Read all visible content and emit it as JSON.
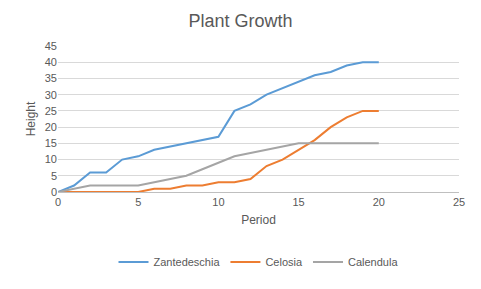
{
  "chart_data": {
    "type": "line",
    "title": "Plant Growth",
    "x_label": "Period",
    "y_label": "Height",
    "x": [
      0,
      1,
      2,
      3,
      4,
      5,
      6,
      7,
      8,
      9,
      10,
      11,
      12,
      13,
      14,
      15,
      16,
      17,
      18,
      19,
      20
    ],
    "series": [
      {
        "name": "Zantedeschia",
        "color": "#5b9bd5",
        "values": [
          0,
          2,
          6,
          6,
          10,
          11,
          13,
          14,
          15,
          16,
          17,
          25,
          27,
          30,
          32,
          34,
          36,
          37,
          39,
          40,
          40
        ]
      },
      {
        "name": "Celosia",
        "color": "#ed7d31",
        "values": [
          0,
          0,
          0,
          0,
          0,
          0,
          1,
          1,
          2,
          2,
          3,
          3,
          4,
          8,
          10,
          13,
          16,
          20,
          23,
          25,
          25
        ]
      },
      {
        "name": "Calendula",
        "color": "#a5a5a5",
        "values": [
          0,
          1,
          2,
          2,
          2,
          2,
          3,
          4,
          5,
          7,
          9,
          11,
          12,
          13,
          14,
          15,
          15,
          15,
          15,
          15,
          15
        ]
      }
    ],
    "xlim": [
      0,
      25
    ],
    "xticks": [
      0,
      5,
      10,
      15,
      20,
      25
    ],
    "ylim": [
      0,
      45
    ],
    "yticks": [
      0,
      5,
      10,
      15,
      20,
      25,
      30,
      35,
      40,
      45
    ],
    "grid": true,
    "legend": "bottom"
  }
}
